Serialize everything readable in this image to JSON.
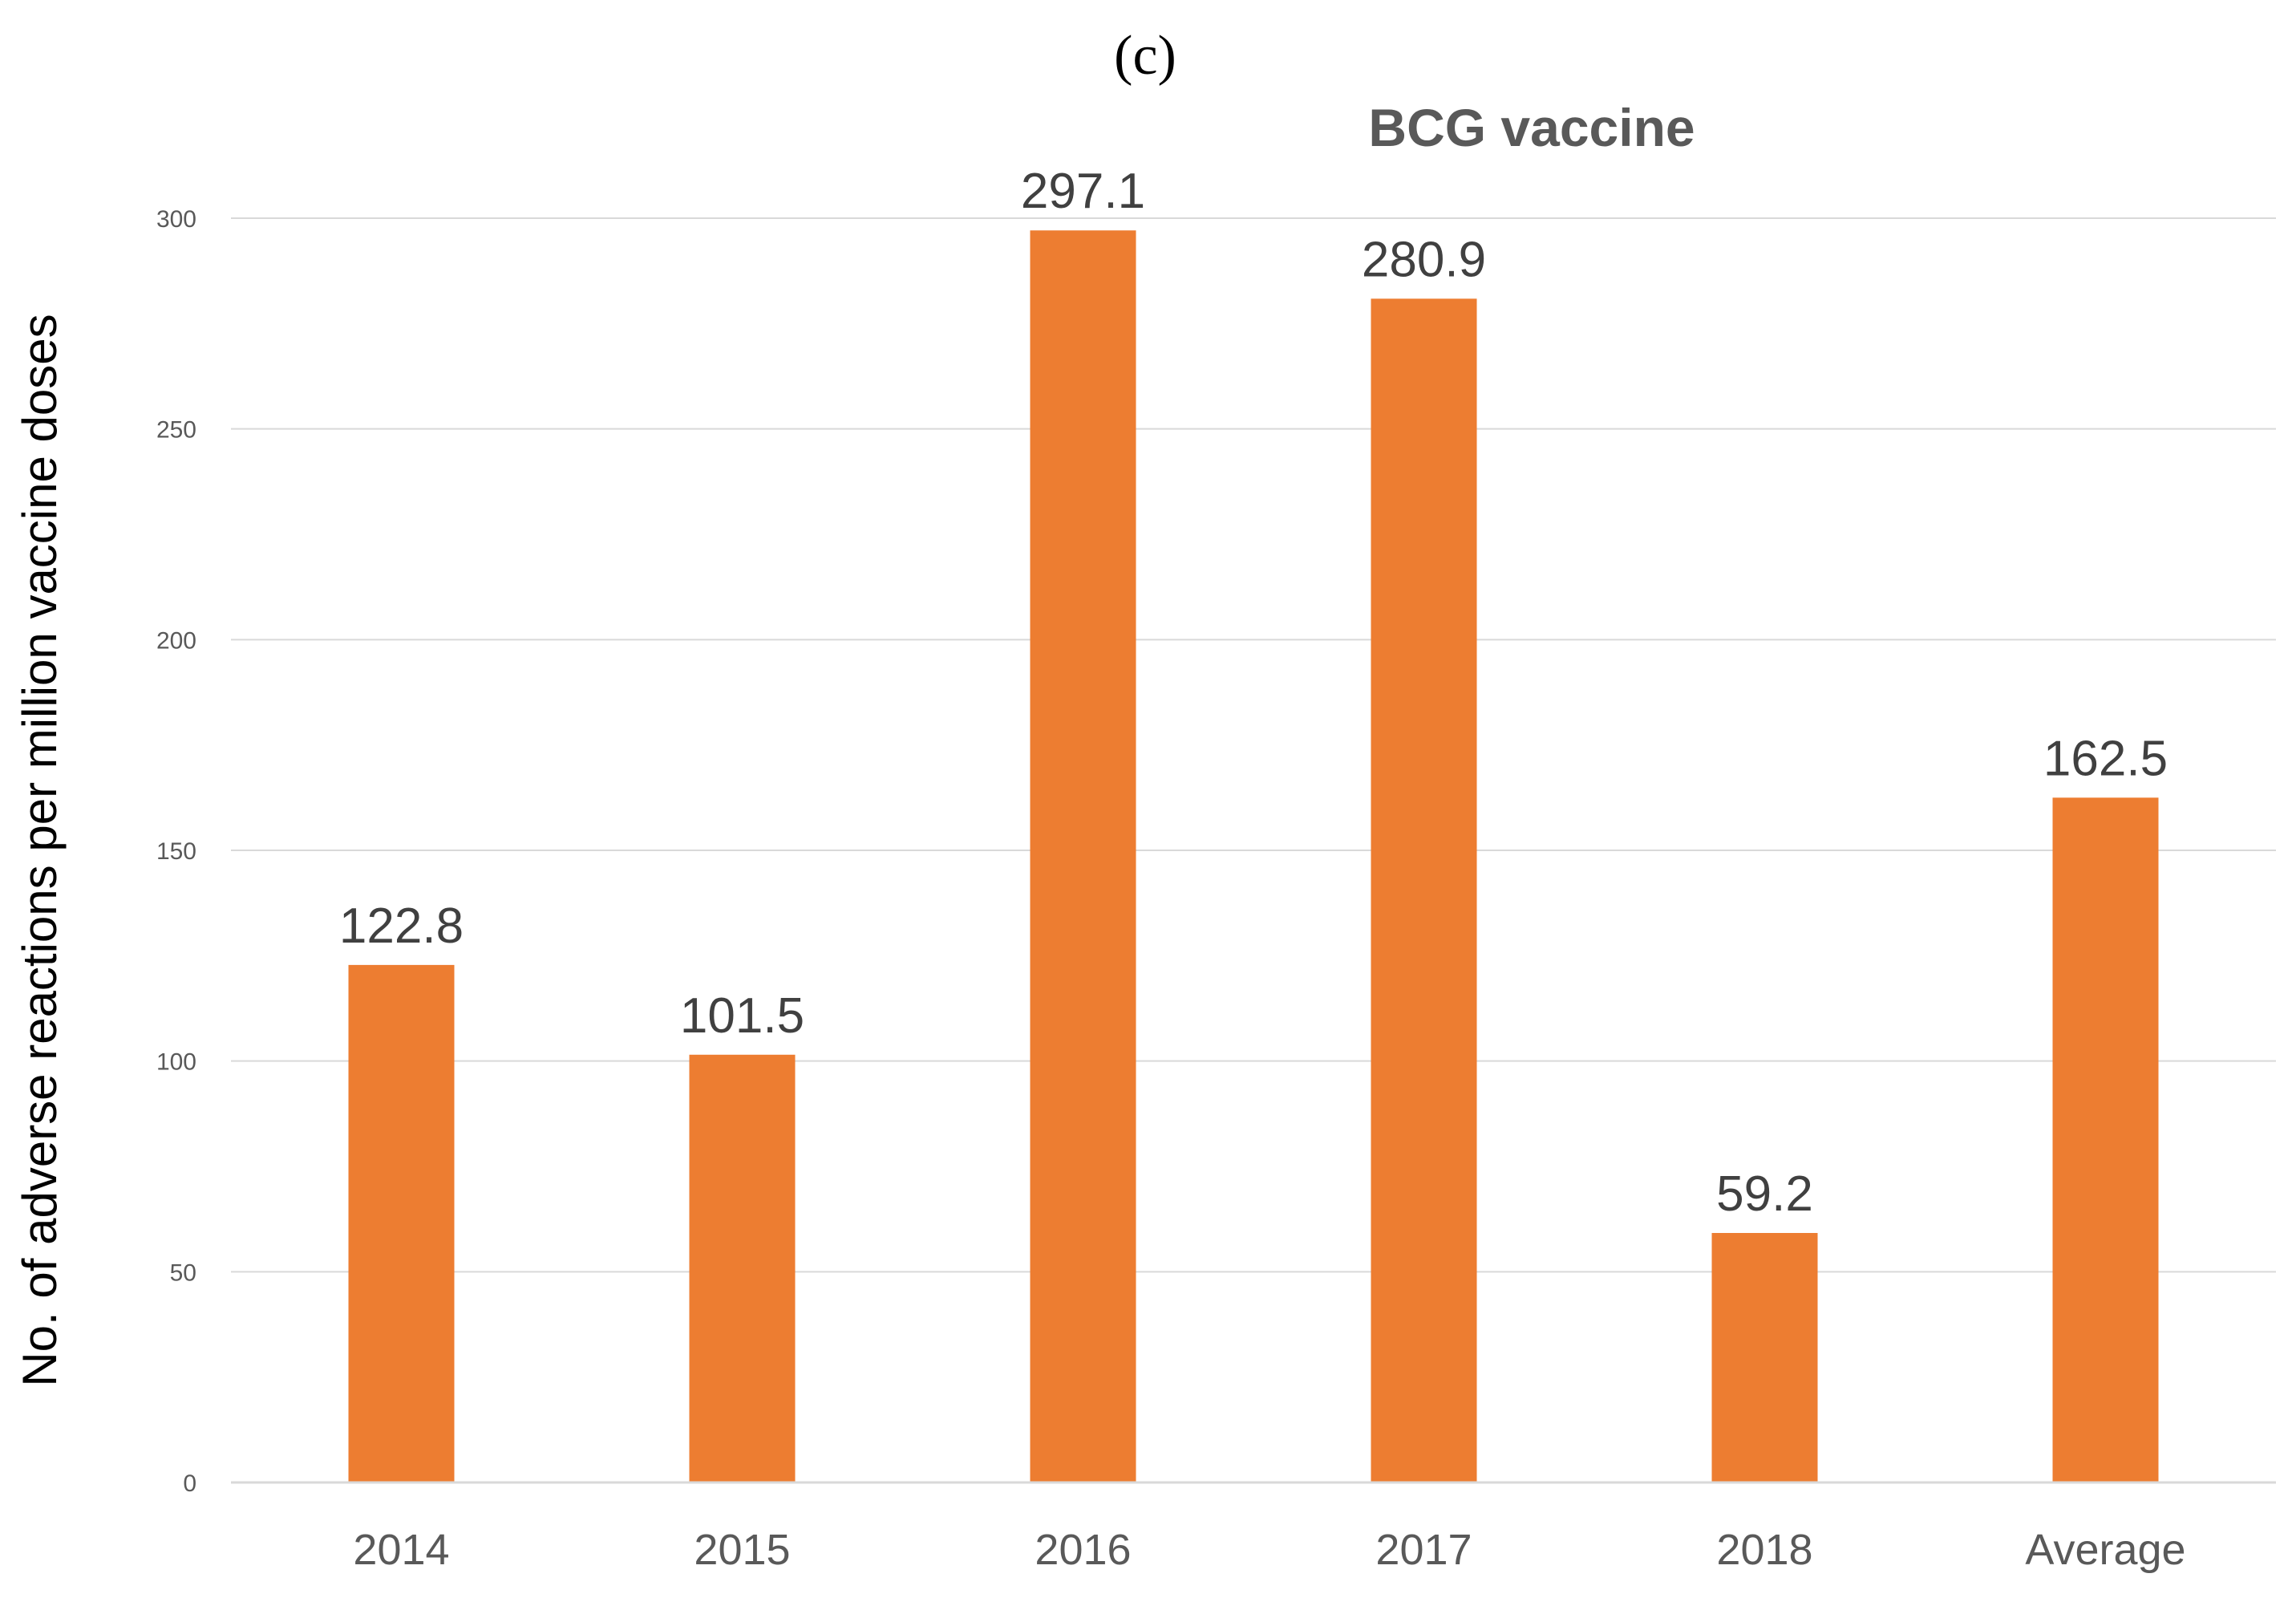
{
  "panel_label": "(c)",
  "chart_data": {
    "type": "bar",
    "title": "BCG vaccine",
    "xlabel": "",
    "ylabel": "No. of adverse reactions per million vaccine doses",
    "categories": [
      "2014",
      "2015",
      "2016",
      "2017",
      "2018",
      "Average"
    ],
    "values": [
      122.8,
      101.5,
      297.1,
      280.9,
      59.2,
      162.5
    ],
    "data_labels": [
      "122.8",
      "101.5",
      "297.1",
      "280.9",
      "59.2",
      "162.5"
    ],
    "ylim": [
      0,
      300
    ],
    "yticks": [
      0,
      50,
      100,
      150,
      200,
      250,
      300
    ],
    "grid": true,
    "legend": "none",
    "bar_color": "#ED7D31"
  }
}
